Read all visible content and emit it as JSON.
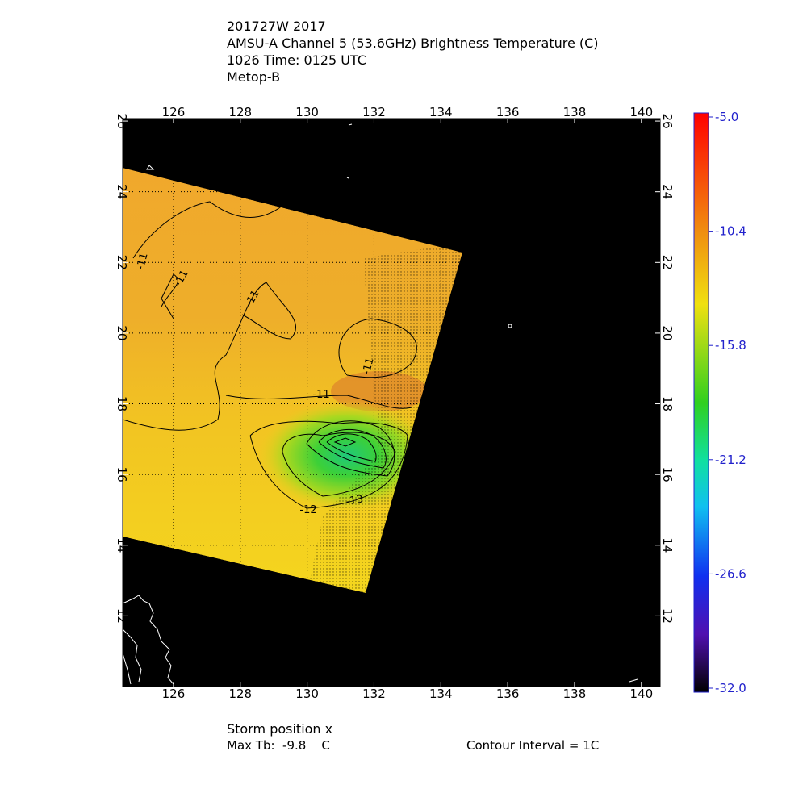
{
  "header": {
    "lines": [
      "201727W 2017",
      "AMSU-A Channel 5 (53.6GHz) Brightness Temperature (C)",
      "1026 Time: 0125 UTC",
      "Metop-B"
    ]
  },
  "map": {
    "xlim": [
      124.48,
      140.56
    ],
    "ylim": [
      10.0,
      26.07
    ],
    "xticks": [
      126,
      128,
      130,
      132,
      134,
      136,
      138,
      140
    ],
    "yticks": [
      12,
      14,
      16,
      18,
      20,
      22,
      24,
      26
    ],
    "grid": true,
    "contour_labels": [
      "-11",
      "-11",
      "-11",
      "-11",
      "-11",
      "-12",
      "-13"
    ]
  },
  "colorbar": {
    "clim": [
      -32.0,
      -5.0
    ],
    "ticks": [
      {
        "value": -5.0,
        "label": "-5.0"
      },
      {
        "value": -10.4,
        "label": "-10.4"
      },
      {
        "value": -15.8,
        "label": "-15.8"
      },
      {
        "value": -21.2,
        "label": "-21.2"
      },
      {
        "value": -26.6,
        "label": "-26.6"
      },
      {
        "value": -32.0,
        "label": "-32.0"
      }
    ]
  },
  "footer": {
    "storm": "Storm position x",
    "max_tb": "Max Tb:  -9.8    C",
    "contour_interval": "Contour Interval = 1C"
  }
}
